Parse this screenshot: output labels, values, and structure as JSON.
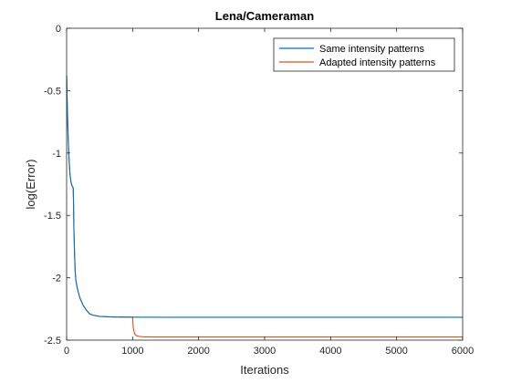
{
  "chart_data": {
    "type": "line",
    "title": "Lena/Cameraman",
    "xlabel": "Iterations",
    "ylabel": "log(Error)",
    "xlim": [
      0,
      6000
    ],
    "ylim": [
      -2.5,
      0
    ],
    "xticks": [
      0,
      1000,
      2000,
      3000,
      4000,
      5000,
      6000
    ],
    "yticks": [
      0,
      -0.5,
      -1,
      -1.5,
      -2,
      -2.5
    ],
    "xtick_labels": [
      "0",
      "1000",
      "2000",
      "3000",
      "4000",
      "5000",
      "6000"
    ],
    "ytick_labels": [
      "0",
      "-0.5",
      "-1",
      "-1.5",
      "-2",
      "-2.5"
    ],
    "grid": false,
    "legend_position": "top-right",
    "series": [
      {
        "name": "Same intensity patterns",
        "color": "#0072BD",
        "x": [
          0,
          5,
          10,
          20,
          30,
          40,
          50,
          60,
          70,
          80,
          90,
          100,
          105,
          110,
          120,
          130,
          140,
          160,
          180,
          200,
          250,
          300,
          350,
          400,
          450,
          500,
          600,
          700,
          800,
          1000,
          1500,
          2000,
          3000,
          4000,
          5000,
          6000
        ],
        "y": [
          -0.38,
          -0.5,
          -0.62,
          -0.82,
          -0.97,
          -1.08,
          -1.16,
          -1.21,
          -1.24,
          -1.26,
          -1.27,
          -1.28,
          -1.4,
          -1.6,
          -1.8,
          -1.95,
          -2.02,
          -2.08,
          -2.12,
          -2.16,
          -2.22,
          -2.26,
          -2.29,
          -2.3,
          -2.305,
          -2.31,
          -2.312,
          -2.314,
          -2.315,
          -2.316,
          -2.317,
          -2.317,
          -2.317,
          -2.317,
          -2.317,
          -2.317
        ]
      },
      {
        "name": "Adapted intensity patterns",
        "color": "#D95319",
        "x": [
          0,
          5,
          10,
          20,
          30,
          40,
          50,
          60,
          70,
          80,
          90,
          100,
          105,
          110,
          120,
          130,
          140,
          160,
          180,
          200,
          250,
          300,
          350,
          400,
          450,
          500,
          600,
          700,
          800,
          1000,
          1010,
          1030,
          1060,
          1100,
          1150,
          1200,
          1300,
          1500,
          2000,
          3000,
          4000,
          5000,
          6000
        ],
        "y": [
          -0.38,
          -0.5,
          -0.62,
          -0.82,
          -0.97,
          -1.08,
          -1.16,
          -1.21,
          -1.24,
          -1.26,
          -1.27,
          -1.28,
          -1.4,
          -1.6,
          -1.8,
          -1.95,
          -2.02,
          -2.08,
          -2.12,
          -2.16,
          -2.22,
          -2.26,
          -2.29,
          -2.3,
          -2.305,
          -2.31,
          -2.312,
          -2.314,
          -2.315,
          -2.316,
          -2.4,
          -2.45,
          -2.465,
          -2.47,
          -2.473,
          -2.474,
          -2.475,
          -2.475,
          -2.475,
          -2.475,
          -2.475,
          -2.475,
          -2.475
        ]
      }
    ]
  }
}
